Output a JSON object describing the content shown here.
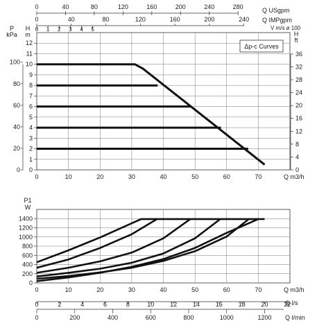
{
  "chart_data": [
    {
      "type": "line",
      "legend_text": "Δp-c Curves",
      "legend_position": "top-right",
      "grid": true,
      "xlabel": "Q m3/h",
      "xlim": [
        0,
        80
      ],
      "x_ticks": [
        "0",
        "10",
        "20",
        "30",
        "40",
        "50",
        "60",
        "70"
      ],
      "ylim": [
        0,
        13
      ],
      "y_left_meters": {
        "label": "H",
        "unit": "m",
        "ticks": [
          "0",
          "1",
          "2",
          "3",
          "4",
          "5",
          "6",
          "7",
          "8",
          "9",
          "10",
          "11",
          "12"
        ]
      },
      "y_left_kpa": {
        "label": "P",
        "unit": "kPa",
        "ticks": [
          "0",
          "20",
          "40",
          "60",
          "80",
          "100"
        ]
      },
      "y_right_feet": {
        "label": "H",
        "unit": "ft",
        "ticks": [
          "0",
          "4",
          "8",
          "12",
          "16",
          "20",
          "24",
          "28",
          "32",
          "36"
        ]
      },
      "top_axes": [
        {
          "label": "Q USgpm",
          "ticks": [
            "0",
            "40",
            "80",
            "120",
            "160",
            "200",
            "240",
            "280"
          ]
        },
        {
          "label": "Q IMPgpm",
          "ticks": [
            "0",
            "40",
            "80",
            "120",
            "160",
            "200",
            "240"
          ]
        },
        {
          "label": "V m/s ø 100",
          "ticks": [
            "0",
            "1",
            "2",
            "3",
            "4",
            "5"
          ]
        }
      ],
      "series": [
        {
          "x": [
            0,
            31,
            33.5,
            72
          ],
          "y": [
            10,
            10,
            9.6,
            0.5
          ]
        },
        {
          "x": [
            0,
            38.2
          ],
          "y": [
            8,
            8
          ]
        },
        {
          "x": [
            0,
            48.5
          ],
          "y": [
            6,
            6
          ]
        },
        {
          "x": [
            0,
            58.2
          ],
          "y": [
            4,
            4
          ]
        },
        {
          "x": [
            0,
            66.8
          ],
          "y": [
            2,
            2
          ]
        }
      ]
    },
    {
      "type": "line",
      "grid": true,
      "xlabel": "Q m3/h",
      "xlim": [
        0,
        80
      ],
      "x_ticks": [
        "0",
        "10",
        "20",
        "30",
        "40",
        "50",
        "60",
        "70"
      ],
      "ylabel": "P1",
      "yunit": "W",
      "ylim": [
        0,
        1600
      ],
      "y_ticks": [
        "0",
        "200",
        "400",
        "600",
        "800",
        "1000",
        "1200",
        "1400"
      ],
      "bottom_axes": [
        {
          "label": "Q l/s",
          "ticks": [
            "0",
            "2",
            "4",
            "6",
            "8",
            "10",
            "12",
            "14",
            "16",
            "18",
            "20",
            "22"
          ]
        },
        {
          "label": "Q l/min",
          "ticks": [
            "0",
            "200",
            "400",
            "600",
            "800",
            "1000",
            "1200"
          ]
        }
      ],
      "series": [
        {
          "x": [
            0,
            10,
            20,
            31,
            33,
            72
          ],
          "y": [
            450,
            710,
            990,
            1330,
            1390,
            1390
          ]
        },
        {
          "x": [
            0,
            10,
            20,
            30,
            38
          ],
          "y": [
            330,
            510,
            760,
            1060,
            1390
          ]
        },
        {
          "x": [
            0,
            10,
            20,
            30,
            40,
            48.5
          ],
          "y": [
            220,
            330,
            470,
            660,
            970,
            1390
          ]
        },
        {
          "x": [
            0,
            10,
            20,
            30,
            40,
            50,
            58
          ],
          "y": [
            140,
            220,
            310,
            440,
            640,
            970,
            1390
          ]
        },
        {
          "x": [
            0,
            10,
            20,
            30,
            40,
            50,
            60,
            67
          ],
          "y": [
            90,
            150,
            230,
            330,
            480,
            690,
            1010,
            1390
          ]
        },
        {
          "x": [
            0,
            10,
            20,
            30,
            40,
            50,
            60,
            70
          ],
          "y": [
            40,
            120,
            220,
            350,
            520,
            760,
            1090,
            1390
          ]
        }
      ]
    }
  ]
}
